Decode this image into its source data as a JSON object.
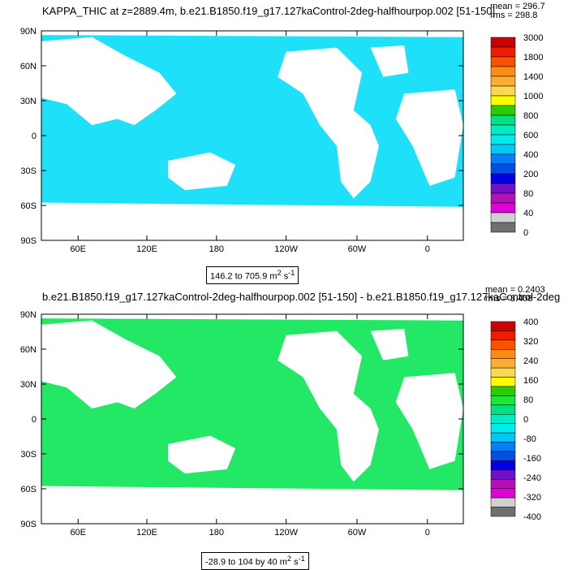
{
  "chart_data": [
    {
      "type": "heatmap",
      "title": "KAPPA_THIC at z=2889.4m, b.e21.B1850.f19_g17.127kaControl-2deg-halfhourpop.002 [51-150]",
      "stats": {
        "mean": "mean = 296.7",
        "rms": "rms = 298.8"
      },
      "range_label": "146.2 to 705.9 m",
      "units_superscript": "2",
      "units_suffix": " s",
      "units_exponent": "-1",
      "x_ticks": [
        "60E",
        "120E",
        "180",
        "120W",
        "60W",
        "0"
      ],
      "y_ticks": [
        "90N",
        "60N",
        "30N",
        "0",
        "30S",
        "60S",
        "90S"
      ],
      "colorbar_labels": [
        "3000",
        "1800",
        "1400",
        "1000",
        "800",
        "600",
        "400",
        "200",
        "80",
        "40",
        "0"
      ],
      "colorbar_colors": [
        "#cc0000",
        "#ee1c00",
        "#fb5000",
        "#fc8c14",
        "#fcac30",
        "#fcd850",
        "#fcfc00",
        "#2ccc00",
        "#00e080",
        "#00ecc4",
        "#00ecec",
        "#00c8f4",
        "#0080ff",
        "#0050e8",
        "#0000e0",
        "#7010c8",
        "#b410b8",
        "#e000d8",
        "#d0d0d0",
        "#707070"
      ],
      "dominant_color": "#1ee0f8"
    },
    {
      "type": "heatmap",
      "title": "b.e21.B1850.f19_g17.127kaControl-2deg-halfhourpop.002 [51-150] - b.e21.B1850.f19_g17.127kaControl-2deg",
      "stats": {
        "mean": "mean = 0.2403",
        "rms": "rms = 3.408"
      },
      "range_label": "-28.9 to 104 by 40 m",
      "units_superscript": "2",
      "units_suffix": " s",
      "units_exponent": "-1",
      "x_ticks": [
        "60E",
        "120E",
        "180",
        "120W",
        "60W",
        "0"
      ],
      "y_ticks": [
        "90N",
        "60N",
        "30N",
        "0",
        "30S",
        "60S",
        "90S"
      ],
      "colorbar_labels": [
        "400",
        "320",
        "240",
        "160",
        "80",
        "0",
        "-80",
        "-160",
        "-240",
        "-320",
        "-400"
      ],
      "colorbar_colors": [
        "#cc0000",
        "#ee1c00",
        "#fb5000",
        "#fc8c14",
        "#fcac30",
        "#fcd850",
        "#fcfc00",
        "#2ccc00",
        "#18e838",
        "#00e080",
        "#00ecc4",
        "#00ecec",
        "#00c8f4",
        "#0080ff",
        "#0050e8",
        "#0000e0",
        "#7010c8",
        "#b410b8",
        "#e000d8",
        "#d0d0d0",
        "#707070"
      ],
      "dominant_color": "#22e866"
    }
  ]
}
